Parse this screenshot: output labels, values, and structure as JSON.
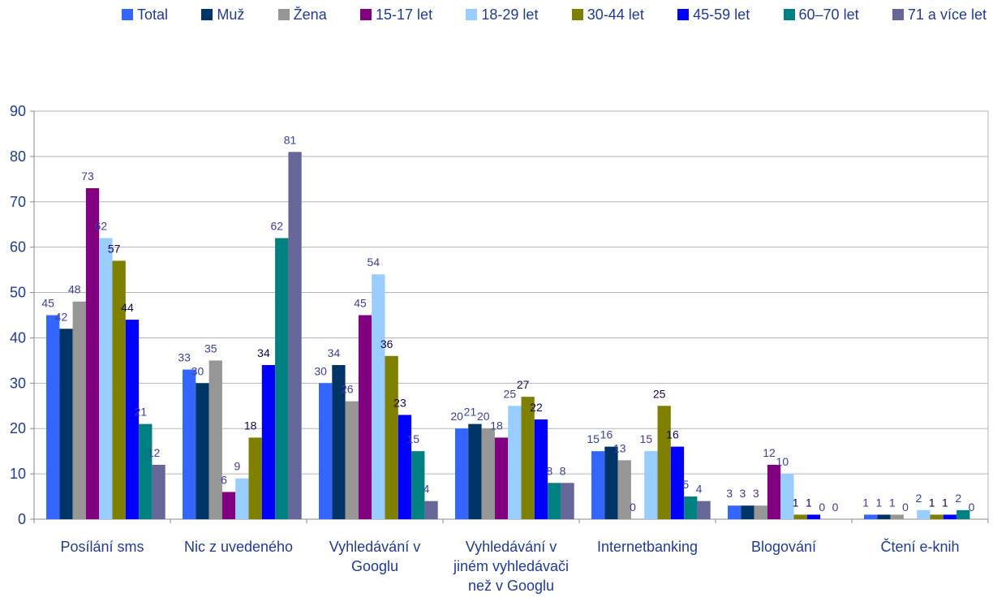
{
  "chart_data": {
    "type": "bar",
    "categories": [
      [
        "Posílání sms"
      ],
      [
        "Nic z uvedeného"
      ],
      [
        "Vyhledávání v",
        "Googlu"
      ],
      [
        "Vyhledávání v",
        "jiném vyhledávači",
        "než v Googlu"
      ],
      [
        "Internetbanking"
      ],
      [
        "Blogování"
      ],
      [
        "Čtení e-knih"
      ]
    ],
    "series": [
      {
        "name": "Total",
        "color": "#3366ff",
        "values": [
          45,
          33,
          30,
          20,
          15,
          3,
          1
        ]
      },
      {
        "name": "Muž",
        "color": "#003366",
        "values": [
          42,
          30,
          34,
          21,
          16,
          3,
          1
        ]
      },
      {
        "name": "Žena",
        "color": "#969696",
        "values": [
          48,
          35,
          26,
          20,
          13,
          3,
          1
        ]
      },
      {
        "name": "15-17 let",
        "color": "#800080",
        "values": [
          73,
          6,
          45,
          18,
          0,
          12,
          0
        ]
      },
      {
        "name": "18-29 let",
        "color": "#99ccff",
        "values": [
          62,
          9,
          54,
          25,
          15,
          10,
          2
        ]
      },
      {
        "name": "30-44 let",
        "color": "#808000",
        "values": [
          57,
          18,
          36,
          27,
          25,
          1,
          1
        ]
      },
      {
        "name": "45-59 let",
        "color": "#0000ff",
        "values": [
          44,
          34,
          23,
          22,
          16,
          1,
          1
        ]
      },
      {
        "name": "60–70 let",
        "color": "#008080",
        "values": [
          21,
          62,
          15,
          8,
          5,
          0,
          2
        ]
      },
      {
        "name": "71 a více let",
        "color": "#666699",
        "values": [
          12,
          81,
          4,
          8,
          4,
          0,
          0
        ]
      }
    ],
    "ylim": [
      0,
      90
    ],
    "yticks": [
      0,
      10,
      20,
      30,
      40,
      50,
      60,
      70,
      80,
      90
    ],
    "grid": true,
    "legend": "top"
  }
}
